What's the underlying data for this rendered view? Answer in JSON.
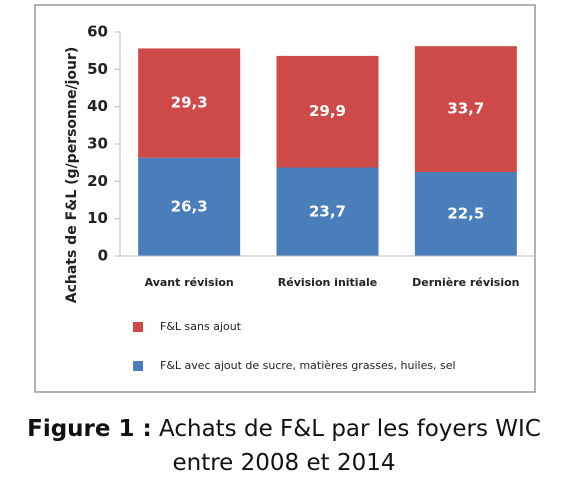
{
  "chart_data": {
    "type": "stacked_bar",
    "y_label": "Achats de F&L (g/personne/jour)",
    "categories": [
      "Avant révision",
      "Révision initiale",
      "Dernière révision"
    ],
    "series": [
      {
        "name": "F&L avec ajout de sucre, matières grasses, huiles, sel",
        "color": "#4a7ebb",
        "values": [
          26.3,
          23.7,
          22.5
        ],
        "value_labels": [
          "26,3",
          "23,7",
          "22,5"
        ]
      },
      {
        "name": "F&L sans ajout",
        "color": "#cd4a48",
        "values": [
          29.3,
          29.9,
          33.7
        ],
        "value_labels": [
          "29,3",
          "29,9",
          "33,7"
        ]
      }
    ],
    "ylim": [
      0,
      60
    ],
    "yticks": [
      0,
      10,
      20,
      30,
      40,
      50,
      60
    ],
    "grid": false
  },
  "caption": {
    "label": "Figure 1 :",
    "text": "Achats de F&L par les foyers WIC entre 2008 et 2014"
  }
}
